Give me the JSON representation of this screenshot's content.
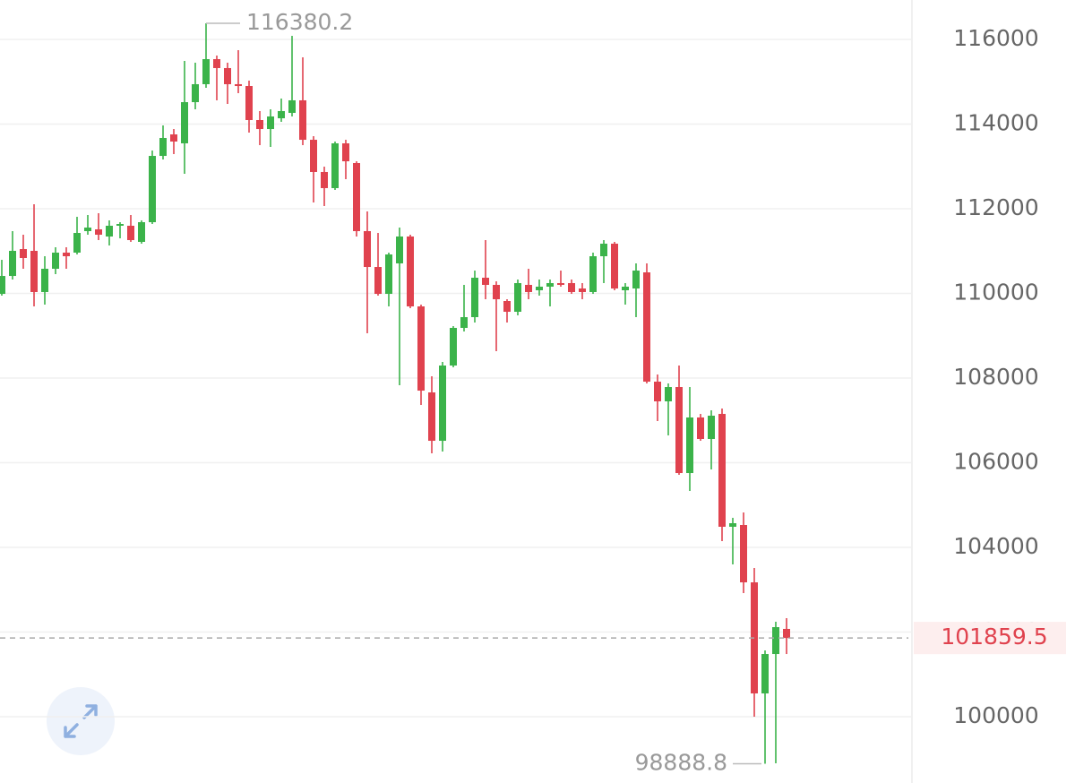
{
  "chart_data": {
    "type": "candlestick",
    "up_color": "#3bb34a",
    "down_color": "#e0424e",
    "grid": true,
    "ylim": [
      98434,
      116931
    ],
    "yticks": [
      100000,
      102000,
      104000,
      106000,
      108000,
      110000,
      112000,
      114000,
      116000
    ],
    "open": [
      109989,
      110412,
      111047,
      111005,
      110032,
      110582,
      110963,
      110963,
      111471,
      111513,
      111344,
      111598,
      111598,
      111217,
      111682,
      113248,
      113756,
      113545,
      114518,
      114942,
      115534,
      115323,
      114942,
      114899,
      114095,
      113883,
      114137,
      114264,
      114561,
      113629,
      112868,
      112487,
      113545,
      113079,
      111471,
      110624,
      109989,
      110709,
      111344,
      109693,
      107661,
      106518,
      108296,
      109185,
      109439,
      110370,
      110201,
      109820,
      109566,
      110201,
      110074,
      110159,
      110243,
      110243,
      110116,
      110032,
      110878,
      111174,
      110074,
      110116,
      110497,
      107915,
      107450,
      107788,
      105756,
      107069,
      106561,
      107153,
      104487,
      104529,
      103174,
      100550,
      101481,
      102074
    ],
    "high": [
      110793,
      111471,
      111386,
      112106,
      110878,
      111090,
      111090,
      111809,
      111852,
      111894,
      111725,
      111682,
      111852,
      111725,
      113375,
      113968,
      113883,
      115492,
      115450,
      116380.2,
      115619,
      115450,
      115746,
      115026,
      114307,
      114349,
      114603,
      116084,
      115577,
      113714,
      112994,
      113587,
      113629,
      113121,
      111936,
      111428,
      110963,
      111555,
      111386,
      109735,
      108042,
      108381,
      109227,
      110201,
      110539,
      111259,
      110285,
      109862,
      110328,
      110582,
      110328,
      110328,
      110539,
      110328,
      110243,
      110963,
      111259,
      111217,
      110243,
      110709,
      110709,
      108084,
      107873,
      108296,
      107788,
      107153,
      107238,
      107280,
      104698,
      104825,
      103513,
      101566,
      102243,
      102328
    ],
    "low": [
      109947,
      110328,
      110582,
      109693,
      109735,
      110455,
      110582,
      110920,
      111386,
      111259,
      111132,
      111301,
      111217,
      111174,
      111640,
      113164,
      113291,
      112825,
      114349,
      114857,
      114561,
      114476,
      114730,
      113799,
      113502,
      113460,
      114053,
      114180,
      113502,
      112148,
      112063,
      112444,
      112698,
      111344,
      109058,
      109947,
      109693,
      107830,
      109651,
      107365,
      106222,
      106264,
      108254,
      109100,
      109312,
      109862,
      108635,
      109312,
      109481,
      109862,
      109947,
      109693,
      110159,
      109989,
      109862,
      109989,
      110243,
      110074,
      109735,
      109439,
      107873,
      106984,
      106645,
      105714,
      105333,
      106518,
      105841,
      104148,
      103598,
      102920,
      100000,
      98888.8,
      98899,
      101481
    ],
    "close": [
      110412,
      111005,
      110836,
      110032,
      110582,
      110963,
      110878,
      111428,
      111555,
      111386,
      111598,
      111640,
      111259,
      111682,
      113248,
      113672,
      113587,
      114518,
      114942,
      115534,
      115323,
      114942,
      114899,
      114095,
      113883,
      114180,
      114307,
      114561,
      113629,
      112868,
      112487,
      113545,
      113121,
      111471,
      110624,
      109989,
      110920,
      111344,
      109693,
      107703,
      106518,
      108296,
      109185,
      109439,
      110370,
      110201,
      109862,
      109566,
      110243,
      110032,
      110159,
      110243,
      110201,
      110032,
      110032,
      110878,
      111174,
      110116,
      110159,
      110539,
      107915,
      107450,
      107788,
      105756,
      107069,
      106561,
      107111,
      104487,
      104571,
      103174,
      100550,
      101481,
      102116,
      101859.5
    ]
  }
}
